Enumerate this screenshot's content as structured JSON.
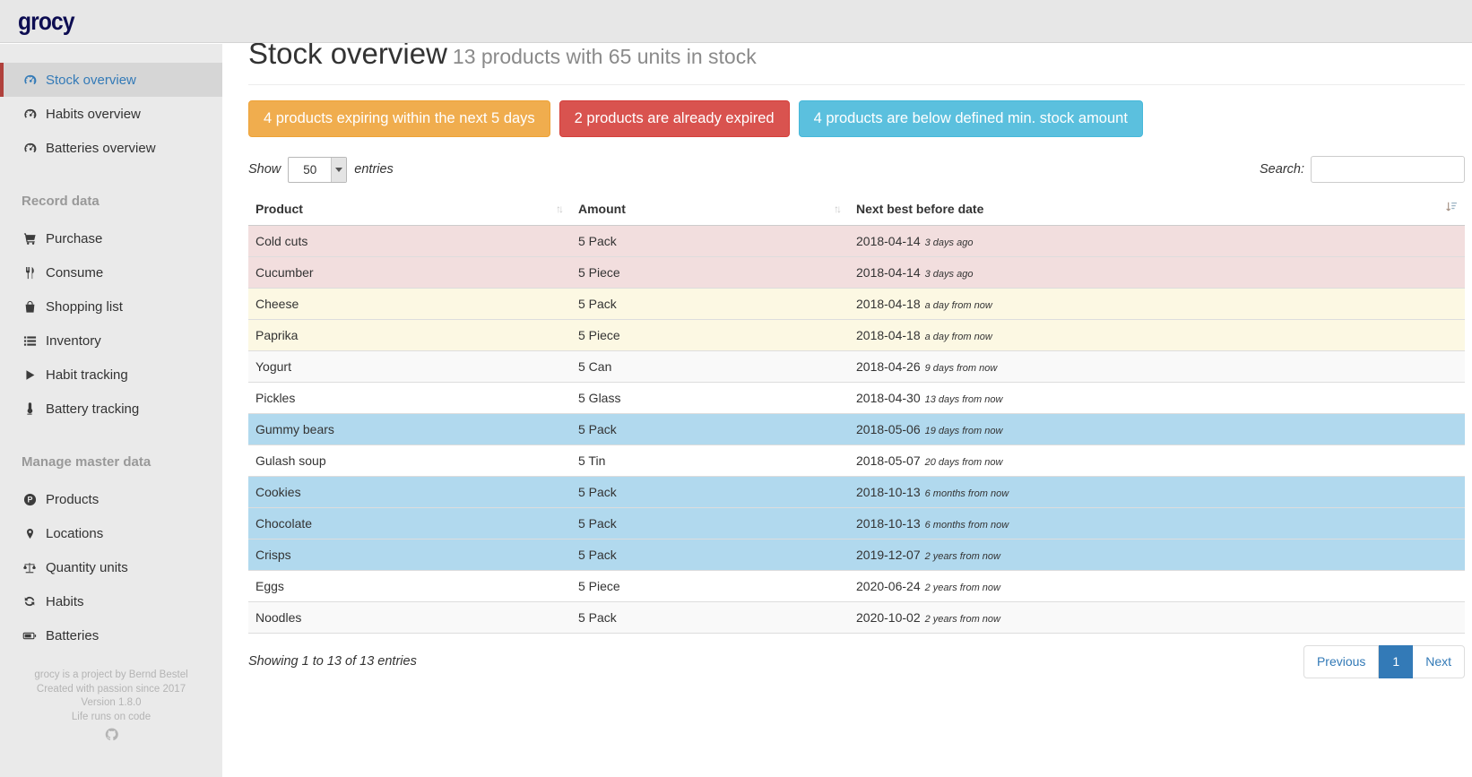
{
  "brand": {
    "logo_text": "grocy"
  },
  "sidebar": {
    "items": [
      {
        "label": "Stock overview",
        "icon": "tachometer-icon",
        "type": "tachometer",
        "active": true
      },
      {
        "label": "Habits overview",
        "icon": "tachometer-icon",
        "type": "tachometer"
      },
      {
        "label": "Batteries overview",
        "icon": "tachometer-icon",
        "type": "tachometer"
      },
      {
        "section": "Record data"
      },
      {
        "label": "Purchase",
        "icon": "shopping-cart-icon",
        "type": "cart"
      },
      {
        "label": "Consume",
        "icon": "utensils-icon",
        "type": "utensils"
      },
      {
        "label": "Shopping list",
        "icon": "shopping-bag-icon",
        "type": "bag"
      },
      {
        "label": "Inventory",
        "icon": "list-icon",
        "type": "list"
      },
      {
        "label": "Habit tracking",
        "icon": "play-icon",
        "type": "play"
      },
      {
        "label": "Battery tracking",
        "icon": "thermometer-icon",
        "type": "thermometer"
      },
      {
        "section": "Manage master data"
      },
      {
        "label": "Products",
        "icon": "product-circle-p-icon",
        "type": "productp"
      },
      {
        "label": "Locations",
        "icon": "map-marker-icon",
        "type": "marker"
      },
      {
        "label": "Quantity units",
        "icon": "balance-scale-icon",
        "type": "scale"
      },
      {
        "label": "Habits",
        "icon": "sync-icon",
        "type": "sync"
      },
      {
        "label": "Batteries",
        "icon": "battery-icon",
        "type": "battery"
      }
    ],
    "footer_lines": [
      "grocy is a project by Bernd Bestel",
      "Created with passion since 2017",
      "Version 1.8.0",
      "Life runs on code"
    ]
  },
  "header": {
    "title": "Stock overview",
    "subtitle": "13 products with 65 units in stock"
  },
  "alerts": [
    {
      "label": "4 products expiring within the next 5 days",
      "type": "warning"
    },
    {
      "label": "2 products are already expired",
      "type": "danger"
    },
    {
      "label": "4 products are below defined min. stock amount",
      "type": "info"
    }
  ],
  "controls": {
    "show_label": "Show",
    "page_size": "50",
    "entries_label": "entries",
    "search_label": "Search:",
    "search_value": ""
  },
  "table": {
    "columns": [
      {
        "label": "Product",
        "sort": "both"
      },
      {
        "label": "Amount",
        "sort": "both"
      },
      {
        "label": "Next best before date",
        "sort": "none"
      },
      {
        "label": "",
        "sort": "amount-asc"
      }
    ],
    "rows": [
      {
        "product": "Cold cuts",
        "amount": "5 Pack",
        "date": "2018-04-14",
        "note": "3 days ago",
        "status": "expired"
      },
      {
        "product": "Cucumber",
        "amount": "5 Piece",
        "date": "2018-04-14",
        "note": "3 days ago",
        "status": "expired"
      },
      {
        "product": "Cheese",
        "amount": "5 Pack",
        "date": "2018-04-18",
        "note": "a day from now",
        "status": "expiring-soon"
      },
      {
        "product": "Paprika",
        "amount": "5 Piece",
        "date": "2018-04-18",
        "note": "a day from now",
        "status": "expiring-soon"
      },
      {
        "product": "Yogurt",
        "amount": "5 Can",
        "date": "2018-04-26",
        "note": "9 days from now",
        "status": "stripe"
      },
      {
        "product": "Pickles",
        "amount": "5 Glass",
        "date": "2018-04-30",
        "note": "13 days from now",
        "status": "plain"
      },
      {
        "product": "Gummy bears",
        "amount": "5 Pack",
        "date": "2018-05-06",
        "note": "19 days from now",
        "status": "below-min"
      },
      {
        "product": "Gulash soup",
        "amount": "5 Tin",
        "date": "2018-05-07",
        "note": "20 days from now",
        "status": "plain"
      },
      {
        "product": "Cookies",
        "amount": "5 Pack",
        "date": "2018-10-13",
        "note": "6 months from now",
        "status": "below-min"
      },
      {
        "product": "Chocolate",
        "amount": "5 Pack",
        "date": "2018-10-13",
        "note": "6 months from now",
        "status": "below-min"
      },
      {
        "product": "Crisps",
        "amount": "5 Pack",
        "date": "2019-12-07",
        "note": "2 years from now",
        "status": "below-min"
      },
      {
        "product": "Eggs",
        "amount": "5 Piece",
        "date": "2020-06-24",
        "note": "2 years from now",
        "status": "plain"
      },
      {
        "product": "Noodles",
        "amount": "5 Pack",
        "date": "2020-10-02",
        "note": "2 years from now",
        "status": "stripe"
      }
    ]
  },
  "summary": {
    "info": "Showing 1 to 13 of 13 entries"
  },
  "pagination": {
    "previous": "Previous",
    "current_page": "1",
    "next": "Next"
  },
  "colors": {
    "accent_blue": "#337ab7",
    "logo_navy": "#0d0d52",
    "active_marker_red": "#b0413c",
    "row_danger": "#f2dede",
    "row_warning": "#fcf8e3",
    "row_info": "#b1d9ee",
    "row_stripe": "#f9f9f9",
    "btn_warning": "#f0ad4e",
    "btn_danger": "#d9534f",
    "btn_info": "#5bc0de"
  }
}
